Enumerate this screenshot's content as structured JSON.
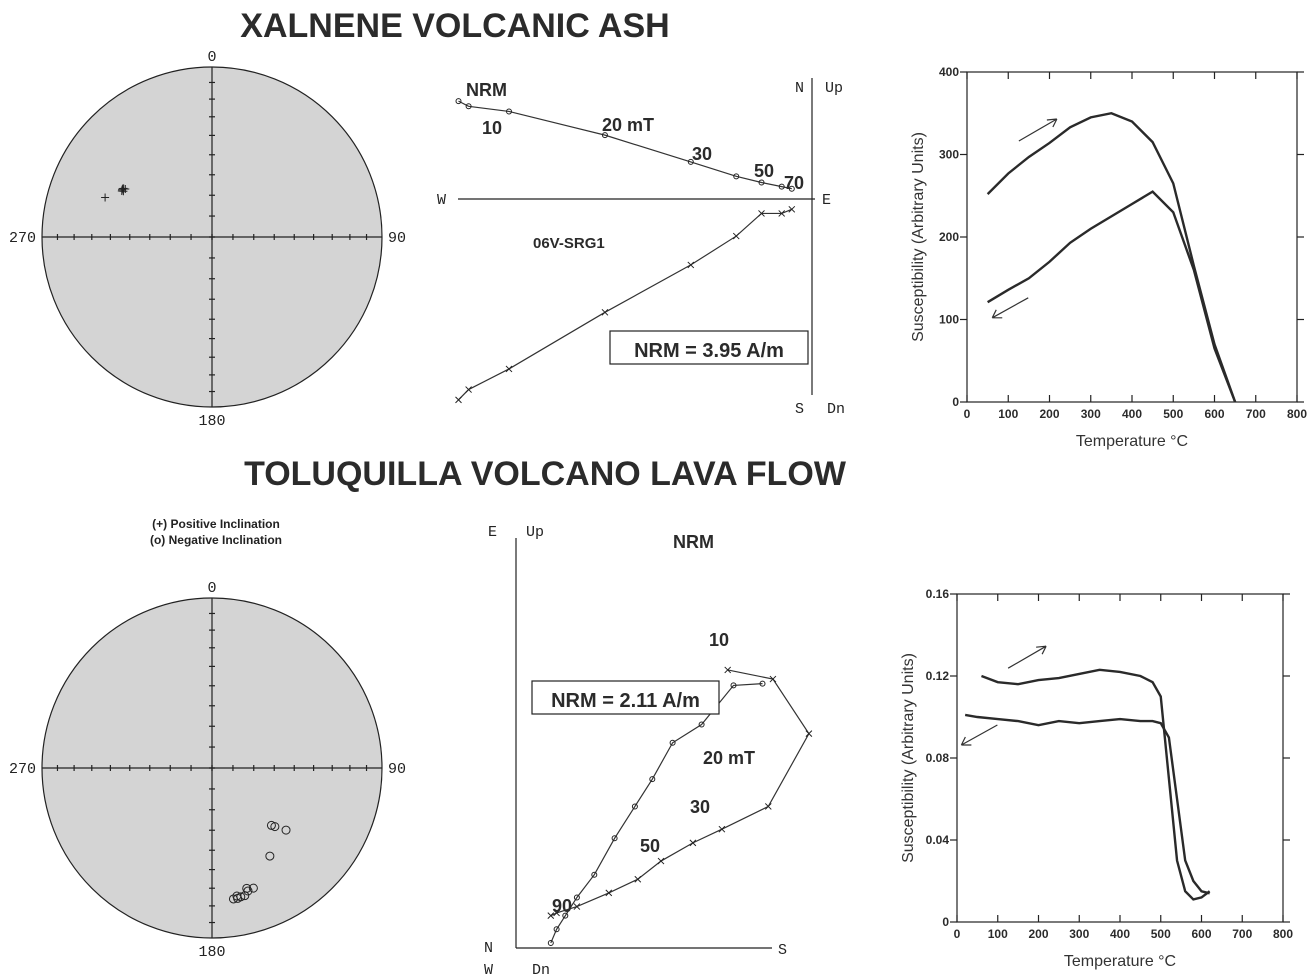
{
  "titles": {
    "top": "XALNENE VOLCANIC  ASH",
    "bottom": "TOLUQUILLA VOLCANO LAVA FLOW"
  },
  "chart_data": [
    {
      "type": "scatter",
      "panel": "top-left stereonet",
      "projection": "equal-area",
      "direction_labels": [
        "0",
        "90",
        "180",
        "270"
      ],
      "points": [
        {
          "dec": 290.3,
          "inc": 33.4,
          "marker": "+"
        },
        {
          "dec": 297.7,
          "inc": 40.0,
          "marker": "+"
        },
        {
          "dec": 298.4,
          "inc": 40.0,
          "marker": "+"
        },
        {
          "dec": 298.8,
          "inc": 40.4,
          "marker": "+"
        },
        {
          "dec": 297.0,
          "inc": 40.2,
          "marker": "+"
        },
        {
          "dec": 297.3,
          "inc": 41.0,
          "marker": "+"
        },
        {
          "dec": 299.0,
          "inc": 41.3,
          "marker": "+"
        }
      ]
    },
    {
      "type": "line",
      "panel": "top-middle orthogonal vector plot",
      "axis_labels": {
        "top_right_1": "N",
        "top_right_2": "Up",
        "left": "W",
        "right": "E",
        "bottom_right_1": "S",
        "bottom_right_2": "Dn"
      },
      "horizontal_projection": [
        [
          -3.5,
          0.95
        ],
        [
          -3.4,
          0.9
        ],
        [
          -3.0,
          0.85
        ],
        [
          -2.05,
          0.62
        ],
        [
          -1.2,
          0.36
        ],
        [
          -0.75,
          0.22
        ],
        [
          -0.5,
          0.16
        ],
        [
          -0.3,
          0.12
        ],
        [
          -0.2,
          0.1
        ]
      ],
      "vertical_projection": [
        [
          -3.5,
          -1.95
        ],
        [
          -3.4,
          -1.85
        ],
        [
          -3.0,
          -1.65
        ],
        [
          -2.05,
          -1.1
        ],
        [
          -1.2,
          -0.64
        ],
        [
          -0.75,
          -0.36
        ],
        [
          -0.5,
          -0.14
        ],
        [
          -0.3,
          -0.14
        ],
        [
          -0.2,
          -0.1
        ]
      ],
      "step_labels": [
        "NRM",
        "10",
        "20 mT",
        "30",
        "50",
        "70"
      ],
      "specimen": "06V-SRG1",
      "annotation": "NRM = 3.95 A/m"
    },
    {
      "type": "line",
      "panel": "top-right thermomagnetic curve",
      "xlabel": "Temperature °C",
      "ylabel": "Susceptibility (Arbitrary Units)",
      "xlim": [
        0,
        800
      ],
      "ylim": [
        0,
        400
      ],
      "xticks": [
        0,
        100,
        200,
        300,
        400,
        500,
        600,
        700,
        800
      ],
      "yticks": [
        0,
        100,
        200,
        300,
        400
      ],
      "series": [
        {
          "x": [
            50,
            100,
            150,
            200,
            250,
            300,
            350,
            400,
            450,
            500,
            550,
            600,
            650
          ],
          "y": [
            252,
            277,
            297,
            314,
            333,
            345,
            350,
            340,
            315,
            265,
            165,
            70,
            0
          ]
        },
        {
          "x": [
            650,
            600,
            550,
            500,
            450,
            400,
            350,
            300,
            250,
            200,
            150,
            100,
            50
          ],
          "y": [
            0,
            65,
            160,
            230,
            255,
            240,
            225,
            210,
            193,
            170,
            150,
            136,
            121
          ]
        }
      ]
    },
    {
      "type": "scatter",
      "panel": "bottom-left stereonet",
      "projection": "equal-area",
      "direction_labels": [
        "0",
        "90",
        "180",
        "270"
      ],
      "legend": [
        "(+) Positive Inclination",
        "(o) Negative Inclination"
      ],
      "points": [
        {
          "dec": 134.0,
          "inc": 49.8,
          "marker": "o"
        },
        {
          "dec": 133.0,
          "inc": 48.1,
          "marker": "o"
        },
        {
          "dec": 130.0,
          "inc": 42.6,
          "marker": "o"
        },
        {
          "dec": 146.7,
          "inc": 38.0,
          "marker": "o"
        },
        {
          "dec": 161.0,
          "inc": 26.2,
          "marker": "o"
        },
        {
          "dec": 163.9,
          "inc": 27.2,
          "marker": "o"
        },
        {
          "dec": 163.7,
          "inc": 25.6,
          "marker": "o"
        },
        {
          "dec": 165.6,
          "inc": 23.5,
          "marker": "o"
        },
        {
          "dec": 167.4,
          "inc": 23.4,
          "marker": "o"
        },
        {
          "dec": 168.9,
          "inc": 22.9,
          "marker": "o"
        },
        {
          "dec": 169.0,
          "inc": 24.3,
          "marker": "o"
        },
        {
          "dec": 170.7,
          "inc": 23.0,
          "marker": "o"
        }
      ]
    },
    {
      "type": "line",
      "panel": "bottom-middle orthogonal vector plot",
      "axis_labels": {
        "top_left_1": "E",
        "top_left_2": "Up",
        "bottom_left_1": "N",
        "bottom_left_2": "W",
        "bottom_left_3": "Dn",
        "bottom_right": "S"
      },
      "horizontal_projection": [
        [
          3.65,
          1.45
        ],
        [
          4.43,
          1.55
        ],
        [
          5.05,
          2.15
        ],
        [
          4.35,
          2.95
        ],
        [
          3.55,
          3.2
        ],
        [
          3.05,
          3.35
        ],
        [
          2.5,
          3.55
        ],
        [
          2.1,
          3.75
        ],
        [
          1.6,
          3.9
        ],
        [
          1.05,
          4.05
        ],
        [
          0.7,
          4.12
        ],
        [
          0.6,
          4.15
        ]
      ],
      "vertical_projection": [
        [
          4.25,
          1.6
        ],
        [
          3.75,
          1.62
        ],
        [
          3.2,
          2.05
        ],
        [
          2.7,
          2.25
        ],
        [
          2.35,
          2.65
        ],
        [
          2.05,
          2.95
        ],
        [
          1.7,
          3.3
        ],
        [
          1.35,
          3.7
        ],
        [
          1.05,
          3.95
        ],
        [
          0.85,
          4.15
        ],
        [
          0.7,
          4.3
        ],
        [
          0.6,
          4.45
        ]
      ],
      "step_labels": [
        "NRM",
        "10",
        "20 mT",
        "30",
        "50",
        "90"
      ],
      "annotation": "NRM = 2.11 A/m"
    },
    {
      "type": "line",
      "panel": "bottom-right thermomagnetic curve",
      "xlabel": "Temperature °C",
      "ylabel": "Susceptibility (Arbitrary Units)",
      "xlim": [
        0,
        800
      ],
      "ylim": [
        0,
        0.16
      ],
      "xticks": [
        0,
        100,
        200,
        300,
        400,
        500,
        600,
        700,
        800
      ],
      "yticks": [
        0,
        0.04,
        0.08,
        0.12,
        0.16
      ],
      "ytick_labels": [
        "0",
        "0.04",
        "0.08",
        "0.12",
        "0.16"
      ],
      "series": [
        {
          "x": [
            60,
            100,
            150,
            200,
            250,
            300,
            350,
            400,
            450,
            480,
            500,
            520,
            540,
            560,
            580,
            600,
            620
          ],
          "y": [
            0.12,
            0.117,
            0.116,
            0.118,
            0.119,
            0.121,
            0.123,
            0.122,
            0.12,
            0.117,
            0.11,
            0.07,
            0.03,
            0.015,
            0.011,
            0.012,
            0.015
          ]
        },
        {
          "x": [
            620,
            600,
            580,
            560,
            540,
            520,
            500,
            480,
            450,
            400,
            350,
            300,
            250,
            200,
            150,
            100,
            50,
            20
          ],
          "y": [
            0.014,
            0.015,
            0.02,
            0.03,
            0.06,
            0.09,
            0.097,
            0.098,
            0.098,
            0.099,
            0.098,
            0.097,
            0.098,
            0.096,
            0.098,
            0.099,
            0.1,
            0.101
          ]
        }
      ]
    }
  ]
}
